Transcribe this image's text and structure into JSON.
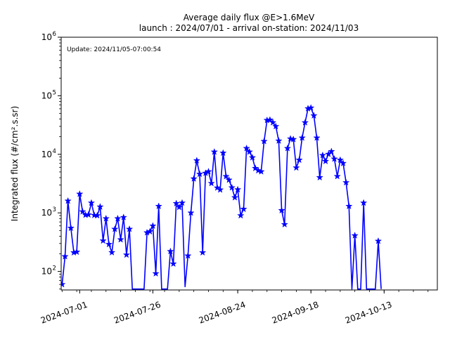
{
  "chart_data": {
    "type": "line",
    "title": "Average daily flux @E>1.6MeV",
    "subtitle": "launch : 2024/07/01 - arrival on-station: 2024/11/03",
    "annotation": "Update: 2024/11/05-07:00:54",
    "ylabel": "Integrated flux (#/cm².s.sr)",
    "yscale": "log",
    "ylim": [
      48,
      1000000
    ],
    "y_major_tick_exponents": [
      2,
      3,
      4,
      5,
      6
    ],
    "xlim": [
      "2024-06-25",
      "2024-10-31"
    ],
    "x_major_ticks": [
      {
        "date": "2024-07-01",
        "label": "2024-07-01"
      },
      {
        "date": "2024-07-26",
        "label": "2024-07-26"
      },
      {
        "date": "2024-08-24",
        "label": "2024-08-24"
      },
      {
        "date": "2024-09-18",
        "label": "2024-09-18"
      },
      {
        "date": "2024-10-13",
        "label": "2024-10-13"
      }
    ],
    "x_minor_tick_interval_days": 5,
    "grid": false,
    "legend": "none",
    "line_color": "#0000ff",
    "marker": "star",
    "series": [
      {
        "name": "integrated-flux",
        "points": [
          [
            "2024-06-25",
            60
          ],
          [
            "2024-06-26",
            180
          ],
          [
            "2024-06-27",
            1600
          ],
          [
            "2024-06-28",
            550
          ],
          [
            "2024-06-29",
            210
          ],
          [
            "2024-06-30",
            215
          ],
          [
            "2024-07-01",
            2100
          ],
          [
            "2024-07-02",
            1050
          ],
          [
            "2024-07-03",
            920
          ],
          [
            "2024-07-04",
            930
          ],
          [
            "2024-07-05",
            1480
          ],
          [
            "2024-07-06",
            910
          ],
          [
            "2024-07-07",
            900
          ],
          [
            "2024-07-08",
            1270
          ],
          [
            "2024-07-09",
            334
          ],
          [
            "2024-07-10",
            800
          ],
          [
            "2024-07-11",
            291
          ],
          [
            "2024-07-12",
            211
          ],
          [
            "2024-07-13",
            528
          ],
          [
            "2024-07-14",
            800
          ],
          [
            "2024-07-15",
            350
          ],
          [
            "2024-07-16",
            838
          ],
          [
            "2024-07-17",
            192
          ],
          [
            "2024-07-18",
            528
          ],
          [
            "2024-07-19",
            50
          ],
          [
            "2024-07-20",
            50
          ],
          [
            "2024-07-21",
            50
          ],
          [
            "2024-07-22",
            50
          ],
          [
            "2024-07-23",
            50
          ],
          [
            "2024-07-24",
            460
          ],
          [
            "2024-07-25",
            480
          ],
          [
            "2024-07-26",
            600
          ],
          [
            "2024-07-27",
            92
          ],
          [
            "2024-07-28",
            1300
          ],
          [
            "2024-07-29",
            50
          ],
          [
            "2024-07-30",
            50
          ],
          [
            "2024-07-31",
            50
          ],
          [
            "2024-08-01",
            220
          ],
          [
            "2024-08-02",
            135
          ],
          [
            "2024-08-03",
            1450
          ],
          [
            "2024-08-04",
            1250
          ],
          [
            "2024-08-05",
            1480
          ],
          [
            "2024-08-06",
            55
          ],
          [
            "2024-08-07",
            185
          ],
          [
            "2024-08-08",
            1000
          ],
          [
            "2024-08-09",
            3830
          ],
          [
            "2024-08-10",
            7830
          ],
          [
            "2024-08-11",
            4600
          ],
          [
            "2024-08-12",
            210
          ],
          [
            "2024-08-13",
            4780
          ],
          [
            "2024-08-14",
            5070
          ],
          [
            "2024-08-15",
            3200
          ],
          [
            "2024-08-16",
            11000
          ],
          [
            "2024-08-17",
            2680
          ],
          [
            "2024-08-18",
            2480
          ],
          [
            "2024-08-19",
            10540
          ],
          [
            "2024-08-20",
            4200
          ],
          [
            "2024-08-21",
            3650
          ],
          [
            "2024-08-22",
            2700
          ],
          [
            "2024-08-23",
            1830
          ],
          [
            "2024-08-24",
            2500
          ],
          [
            "2024-08-25",
            900
          ],
          [
            "2024-08-26",
            1160
          ],
          [
            "2024-08-27",
            12650
          ],
          [
            "2024-08-28",
            11000
          ],
          [
            "2024-08-29",
            8800
          ],
          [
            "2024-08-30",
            5780
          ],
          [
            "2024-08-31",
            5280
          ],
          [
            "2024-09-01",
            5070
          ],
          [
            "2024-09-02",
            16700
          ],
          [
            "2024-09-03",
            38200
          ],
          [
            "2024-09-04",
            38700
          ],
          [
            "2024-09-05",
            34900
          ],
          [
            "2024-09-06",
            30000
          ],
          [
            "2024-09-07",
            17000
          ],
          [
            "2024-09-08",
            1100
          ],
          [
            "2024-09-09",
            635
          ],
          [
            "2024-09-10",
            12650
          ],
          [
            "2024-09-11",
            18430
          ],
          [
            "2024-09-12",
            18000
          ],
          [
            "2024-09-13",
            5900
          ],
          [
            "2024-09-14",
            8000
          ],
          [
            "2024-09-15",
            19100
          ],
          [
            "2024-09-16",
            34900
          ],
          [
            "2024-09-17",
            60500
          ],
          [
            "2024-09-18",
            62200
          ],
          [
            "2024-09-19",
            45800
          ],
          [
            "2024-09-20",
            19100
          ],
          [
            "2024-09-21",
            4020
          ],
          [
            "2024-09-22",
            9620
          ],
          [
            "2024-09-23",
            7620
          ],
          [
            "2024-09-24",
            10070
          ],
          [
            "2024-09-25",
            11190
          ],
          [
            "2024-09-26",
            8350
          ],
          [
            "2024-09-27",
            4210
          ],
          [
            "2024-09-28",
            7990
          ],
          [
            "2024-09-29",
            7030
          ],
          [
            "2024-09-30",
            3300
          ],
          [
            "2024-10-01",
            1300
          ],
          [
            "2024-10-02",
            50
          ],
          [
            "2024-10-03",
            410
          ],
          [
            "2024-10-04",
            50
          ],
          [
            "2024-10-05",
            50
          ],
          [
            "2024-10-06",
            1480
          ],
          [
            "2024-10-07",
            50
          ],
          [
            "2024-10-08",
            50
          ],
          [
            "2024-10-09",
            50
          ],
          [
            "2024-10-10",
            50
          ],
          [
            "2024-10-11",
            330
          ],
          [
            "2024-10-12",
            50
          ]
        ]
      }
    ]
  }
}
